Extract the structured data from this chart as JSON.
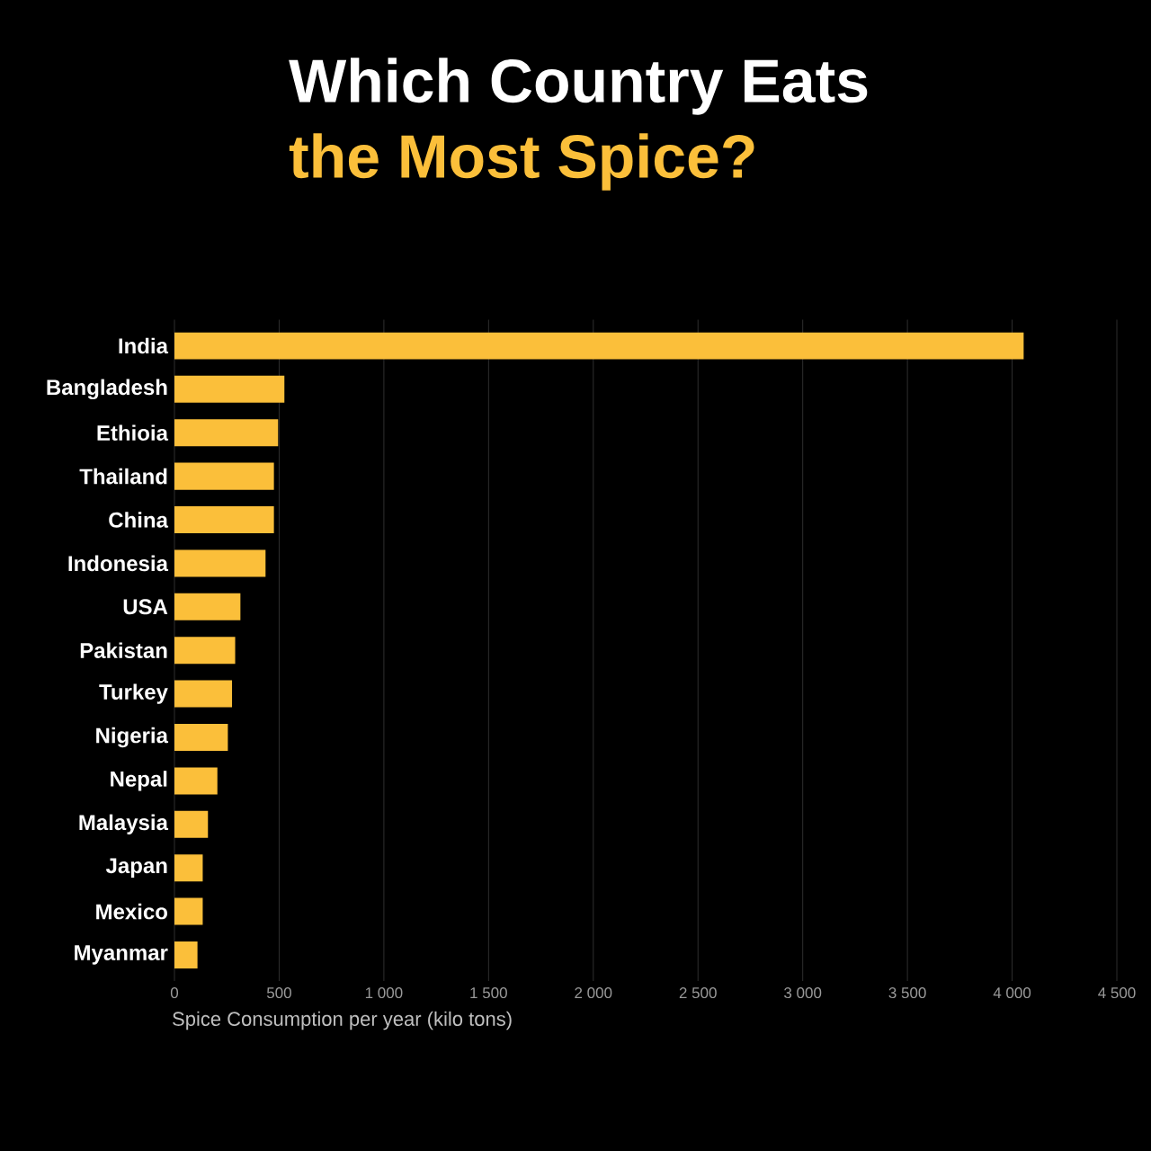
{
  "chart_data": {
    "type": "bar",
    "orientation": "horizontal",
    "title": "Which Country Eats",
    "subtitle": "the Most Spice?",
    "categories": [
      "India",
      "Bangladesh",
      "Ethioia",
      "Thailand",
      "China",
      "Indonesia",
      "USA",
      "Pakistan",
      "Turkey",
      "Nigeria",
      "Nepal",
      "Malaysia",
      "Japan",
      "Mexico",
      "Myanmar"
    ],
    "values": [
      4055,
      525,
      495,
      475,
      475,
      435,
      315,
      290,
      275,
      255,
      205,
      160,
      135,
      135,
      110
    ],
    "color": "#fbbf3a",
    "xlim": [
      0,
      4500
    ],
    "xticks": [
      0,
      500,
      {
        "value": 1000,
        "label": "1 000"
      },
      {
        "value": 1500,
        "label": "1 500"
      },
      {
        "value": 2000,
        "label": "2 000"
      },
      {
        "value": 2500,
        "label": "2 500"
      },
      {
        "value": 3000,
        "label": "3 000"
      },
      {
        "value": 3500,
        "label": "3 500"
      },
      {
        "value": 4000,
        "label": "4 000"
      },
      {
        "value": 4500,
        "label": "4 500"
      }
    ],
    "xlabel": "Spice Consumption per year (kilo tons)",
    "grid": "x"
  }
}
